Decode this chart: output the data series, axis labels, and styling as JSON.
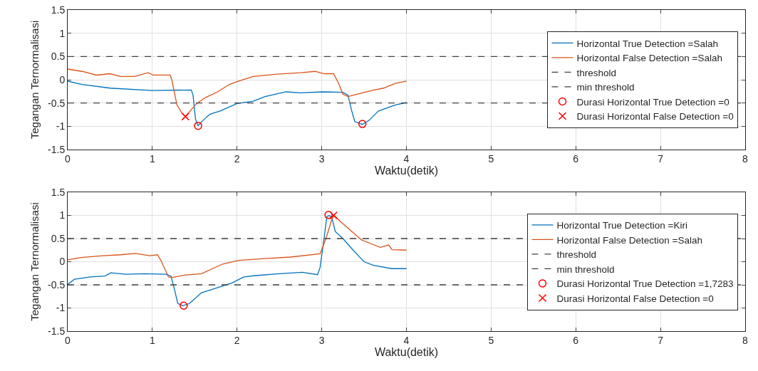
{
  "chart_data": [
    {
      "type": "line",
      "xlabel": "Waktu(detik)",
      "ylabel": "Tegangan Ternormalisasi",
      "xlim": [
        0,
        8
      ],
      "xticks": [
        0,
        1,
        2,
        3,
        4,
        5,
        6,
        7,
        8
      ],
      "ylim": [
        -1.5,
        1.5
      ],
      "yticks": [
        -1.5,
        -1,
        -0.5,
        0,
        0.5,
        1,
        1.5
      ],
      "grid": true,
      "legend": "right",
      "series": [
        {
          "name": "Horizontal True Detection =Salah",
          "color": "#0072bd",
          "x": [
            0,
            0.17,
            0.5,
            1.0,
            1.46,
            1.48,
            1.51,
            1.54,
            1.57,
            1.68,
            1.8,
            2.0,
            2.19,
            2.33,
            2.58,
            2.75,
            3.02,
            3.25,
            3.31,
            3.35,
            3.39,
            3.48,
            3.56,
            3.67,
            3.87,
            4.0
          ],
          "values": [
            -0.03,
            -0.1,
            -0.18,
            -0.23,
            -0.22,
            -0.33,
            -0.85,
            -0.99,
            -0.92,
            -0.74,
            -0.67,
            -0.51,
            -0.46,
            -0.36,
            -0.26,
            -0.28,
            -0.26,
            -0.27,
            -0.33,
            -0.64,
            -0.9,
            -0.96,
            -0.87,
            -0.67,
            -0.54,
            -0.49
          ]
        },
        {
          "name": "Horizontal False Detection =Salah",
          "color": "#d95319",
          "x": [
            0,
            0.17,
            0.34,
            0.5,
            0.62,
            0.79,
            0.95,
            1.01,
            1.21,
            1.23,
            1.29,
            1.35,
            1.39,
            1.46,
            1.53,
            1.63,
            1.77,
            1.91,
            2.0,
            2.19,
            2.47,
            2.75,
            2.92,
            3.03,
            3.14,
            3.2,
            3.25,
            3.31,
            3.48,
            3.59,
            3.73,
            3.87,
            4.0
          ],
          "values": [
            0.23,
            0.18,
            0.1,
            0.13,
            0.07,
            0.07,
            0.15,
            0.1,
            0.1,
            0,
            -0.54,
            -0.72,
            -0.79,
            -0.64,
            -0.5,
            -0.38,
            -0.26,
            -0.1,
            -0.04,
            0.07,
            0.12,
            0.15,
            0.18,
            0.13,
            0.13,
            -0.08,
            -0.31,
            -0.36,
            -0.28,
            -0.23,
            -0.18,
            -0.08,
            -0.03
          ]
        },
        {
          "name": "threshold",
          "color": "#404040",
          "line_style": "dashed",
          "x": [
            0,
            8
          ],
          "values": [
            0.5,
            0.5
          ]
        },
        {
          "name": "min threshold",
          "color": "#404040",
          "line_style": "dashed",
          "x": [
            0,
            8
          ],
          "values": [
            -0.5,
            -0.5
          ]
        },
        {
          "name": "Durasi Horizontal True Detection =0",
          "type": "scatter",
          "marker": "circle",
          "color": "#ff0000",
          "x": [
            1.54,
            3.48
          ],
          "values": [
            -0.99,
            -0.95
          ]
        },
        {
          "name": "Durasi Horizontal False Detection =0",
          "type": "scatter",
          "marker": "cross",
          "color": "#ff0000",
          "x": [
            1.39
          ],
          "values": [
            -0.79
          ]
        }
      ]
    },
    {
      "type": "line",
      "xlabel": "Waktu(detik)",
      "ylabel": "Tegangan Ternormalisasi",
      "xlim": [
        0,
        8
      ],
      "xticks": [
        0,
        1,
        2,
        3,
        4,
        5,
        6,
        7,
        8
      ],
      "ylim": [
        -1.5,
        1.5
      ],
      "yticks": [
        -1.5,
        -1,
        -0.5,
        0,
        0.5,
        1,
        1.5
      ],
      "grid": true,
      "legend": "right",
      "series": [
        {
          "name": "Horizontal True Detection =Kiri",
          "color": "#0072bd",
          "x": [
            0,
            0.08,
            0.27,
            0.44,
            0.51,
            0.69,
            0.91,
            1.16,
            1.22,
            1.26,
            1.3,
            1.36,
            1.44,
            1.58,
            1.72,
            1.94,
            2.08,
            2.22,
            2.5,
            2.77,
            2.95,
            2.98,
            3.02,
            3.06,
            3.09,
            3.12,
            3.16,
            3.25,
            3.38,
            3.5,
            3.61,
            3.83,
            4.0
          ],
          "values": [
            -0.49,
            -0.38,
            -0.33,
            -0.31,
            -0.24,
            -0.27,
            -0.26,
            -0.27,
            -0.31,
            -0.59,
            -0.9,
            -0.95,
            -0.9,
            -0.67,
            -0.59,
            -0.46,
            -0.33,
            -0.3,
            -0.26,
            -0.23,
            -0.28,
            -0.13,
            0.4,
            0.97,
            1.0,
            0.95,
            0.65,
            0.5,
            0.23,
            0,
            -0.08,
            -0.15,
            -0.15
          ]
        },
        {
          "name": "Horizontal False Detection =Salah",
          "color": "#d95319",
          "x": [
            0,
            0.16,
            0.41,
            0.63,
            0.8,
            0.97,
            1.06,
            1.1,
            1.19,
            1.24,
            1.38,
            1.58,
            1.83,
            2.02,
            2.36,
            2.63,
            2.98,
            3.05,
            3.12,
            3.15,
            3.22,
            3.47,
            3.69,
            3.79,
            3.83,
            4.0
          ],
          "values": [
            0.04,
            0.09,
            0.13,
            0.15,
            0.18,
            0.13,
            0.15,
            0.03,
            -0.33,
            -0.34,
            -0.29,
            -0.26,
            -0.05,
            0.03,
            0.07,
            0.1,
            0.17,
            0.5,
            0.92,
            1.0,
            0.87,
            0.47,
            0.31,
            0.36,
            0.26,
            0.25
          ]
        },
        {
          "name": "threshold",
          "color": "#404040",
          "line_style": "dashed",
          "x": [
            0,
            8
          ],
          "values": [
            0.5,
            0.5
          ]
        },
        {
          "name": "min threshold",
          "color": "#404040",
          "line_style": "dashed",
          "x": [
            0,
            8
          ],
          "values": [
            -0.5,
            -0.5
          ]
        },
        {
          "name": "Durasi Horizontal True Detection =1,7283",
          "type": "scatter",
          "marker": "circle",
          "color": "#ff0000",
          "x": [
            1.37,
            3.08
          ],
          "values": [
            -0.95,
            1.01
          ]
        },
        {
          "name": "Durasi Horizontal False Detection =0",
          "type": "scatter",
          "marker": "cross",
          "color": "#ff0000",
          "x": [
            3.14
          ],
          "values": [
            1.0
          ]
        }
      ]
    }
  ]
}
